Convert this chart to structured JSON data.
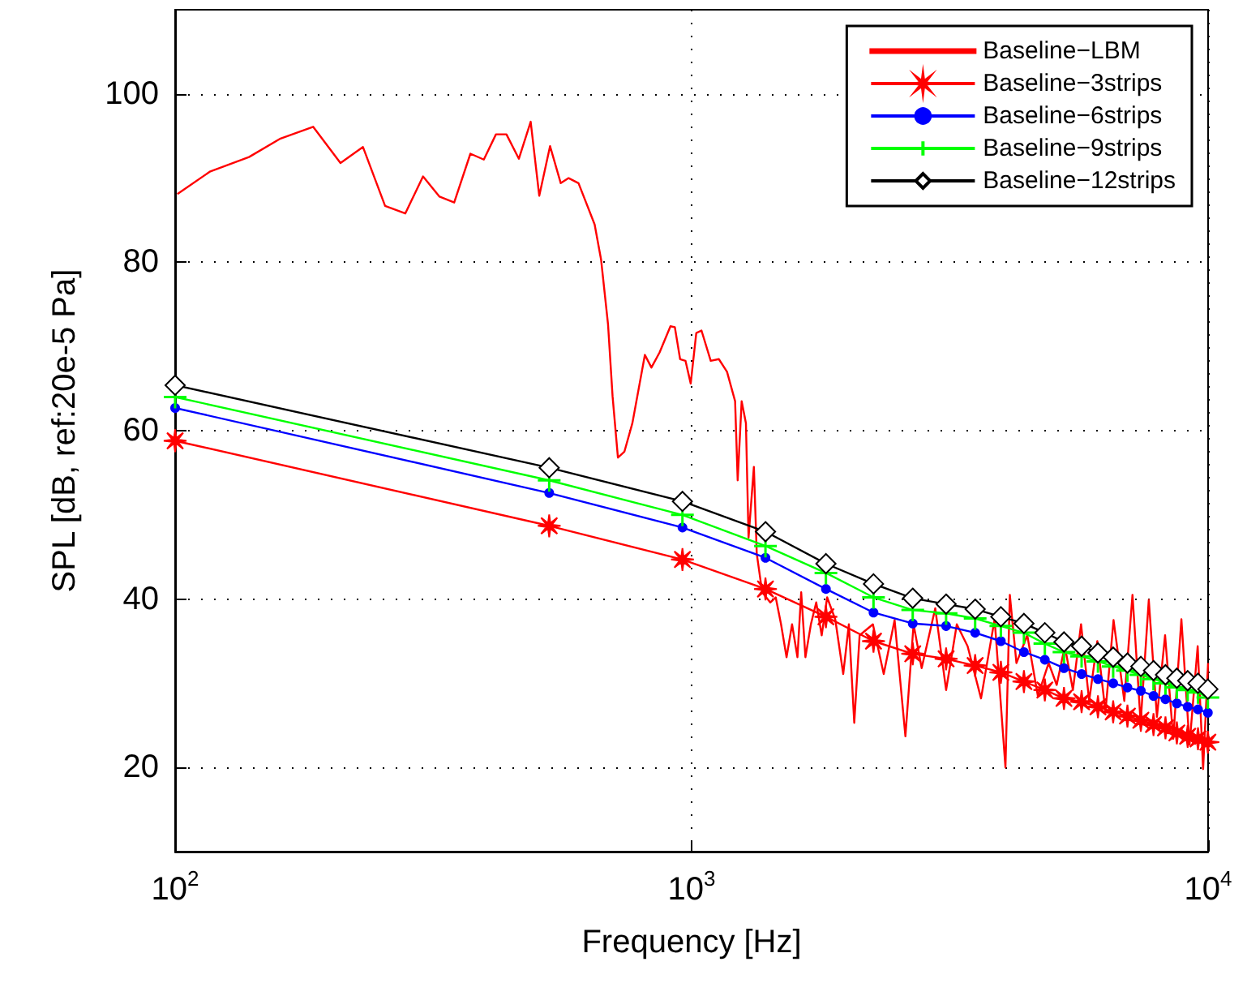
{
  "chart_data": {
    "type": "line",
    "xlabel": "Frequency [Hz]",
    "ylabel": "SPL [dB, ref:20e-5 Pa]",
    "log": "x",
    "xlim": [
      100,
      10000
    ],
    "xticks": [
      {
        "value": 100,
        "label": "10$^{2}$"
      },
      {
        "value": 1000,
        "label": "10$^{3}$"
      },
      {
        "value": 10000,
        "label": "10$^{4}$"
      }
    ],
    "ylim": [
      10,
      110
    ],
    "yticks": [
      20,
      40,
      60,
      80,
      100
    ],
    "grid": true,
    "legend": "top right",
    "line_style": "solid",
    "series": [
      {
        "name": "Baseline−LBM",
        "color": "#ff0000",
        "marker": "none",
        "x": [
          101,
          117,
          139,
          160,
          185,
          209,
          231,
          255,
          279,
          302,
          325,
          347,
          373,
          396,
          418,
          438,
          463,
          488,
          507,
          532,
          558,
          578,
          604,
          649,
          668,
          689,
          703,
          720,
          741,
          768,
          812,
          836,
          867,
          910,
          928,
          950,
          973,
          996,
          1021,
          1045,
          1089,
          1129,
          1171,
          1214,
          1228,
          1250,
          1274,
          1289,
          1320,
          1337,
          1370,
          1420,
          1455,
          1490,
          1527,
          1565,
          1603,
          1630,
          1661,
          1702,
          1743,
          1786,
          1830,
          1897,
          1966,
          2016,
          2065,
          2115,
          2244,
          2355,
          2472,
          2594,
          2690,
          2789,
          2963,
          3110,
          3262,
          3423,
          3634,
          3861,
          4052,
          4132,
          4255,
          4466,
          4682,
          4913,
          5092,
          5280,
          5474,
          5676,
          5885,
          6103,
          6328,
          6561,
          6883,
          7139,
          7403,
          7677,
          7961,
          8256,
          8561,
          8878,
          9206,
          9547,
          9781,
          10000
        ],
        "values": [
          88.1,
          90.8,
          92.5,
          94.7,
          96.1,
          91.8,
          93.7,
          86.7,
          85.8,
          90.2,
          87.8,
          87.1,
          92.9,
          92.2,
          95.2,
          95.2,
          92.3,
          96.7,
          87.9,
          93.8,
          89.4,
          90.0,
          89.4,
          84.5,
          80.3,
          72.6,
          64.1,
          56.8,
          57.5,
          60.9,
          69.0,
          67.5,
          69.3,
          72.4,
          72.3,
          68.5,
          68.3,
          65.6,
          71.6,
          71.9,
          68.3,
          68.5,
          67.0,
          63.5,
          54.1,
          63.5,
          60.9,
          47.3,
          55.7,
          45.4,
          40.8,
          39.6,
          40.2,
          37.0,
          33.1,
          37.0,
          33.1,
          40.8,
          33.1,
          37.0,
          39.6,
          35.7,
          40.2,
          37.6,
          31.1,
          37.0,
          25.3,
          35.7,
          37.0,
          31.1,
          37.5,
          23.7,
          37.0,
          31.8,
          38.9,
          29.2,
          37.0,
          34.4,
          28.2,
          37.6,
          20.0,
          40.5,
          32.4,
          35.7,
          28.5,
          32.4,
          29.8,
          34.4,
          29.2,
          37.0,
          27.9,
          35.0,
          26.6,
          37.5,
          27.9,
          40.5,
          25.3,
          39.9,
          26.0,
          35.7,
          23.4,
          37.6,
          22.7,
          34.4,
          19.8,
          32.4
        ]
      },
      {
        "name": "Baseline−3strips",
        "color": "#ff0000",
        "marker": "star",
        "x": [
          100,
          530,
          960,
          1390,
          1820,
          2250,
          2680,
          3110,
          3540,
          3970,
          4400,
          4830,
          5260,
          5690,
          6120,
          6550,
          6980,
          7410,
          7840,
          8270,
          8700,
          9130,
          9560,
          9990
        ],
        "values": [
          58.8,
          48.7,
          44.7,
          41.2,
          37.9,
          35.0,
          33.5,
          32.9,
          32.1,
          31.3,
          30.2,
          29.2,
          28.2,
          27.8,
          27.2,
          26.6,
          26.1,
          25.6,
          25.1,
          24.7,
          24.1,
          23.7,
          23.4,
          23.0
        ]
      },
      {
        "name": "Baseline−6strips",
        "color": "#0000ff",
        "marker": "circle",
        "x": [
          100,
          530,
          960,
          1390,
          1820,
          2250,
          2680,
          3110,
          3540,
          3970,
          4400,
          4830,
          5260,
          5690,
          6120,
          6550,
          6980,
          7410,
          7840,
          8270,
          8700,
          9130,
          9560,
          9990
        ],
        "values": [
          62.7,
          52.6,
          48.5,
          44.9,
          41.2,
          38.4,
          37.1,
          36.8,
          36.0,
          35.0,
          33.7,
          32.8,
          31.8,
          31.1,
          30.5,
          30.0,
          29.5,
          29.1,
          28.5,
          28.1,
          27.6,
          27.2,
          26.9,
          26.5
        ]
      },
      {
        "name": "Baseline−9strips",
        "color": "#00ff00",
        "marker": "cross",
        "x": [
          100,
          530,
          960,
          1390,
          1820,
          2250,
          2680,
          3110,
          3540,
          3970,
          4400,
          4830,
          5260,
          5690,
          6120,
          6550,
          6980,
          7410,
          7840,
          8270,
          8700,
          9130,
          9560,
          9990
        ],
        "values": [
          64.0,
          54.1,
          50.0,
          46.3,
          43.1,
          40.2,
          38.7,
          38.3,
          37.7,
          36.8,
          36.0,
          34.7,
          33.7,
          33.2,
          32.6,
          32.0,
          31.5,
          31.0,
          30.5,
          30.0,
          29.5,
          29.2,
          28.9,
          28.3
        ]
      },
      {
        "name": "Baseline−12strips",
        "color": "#000000",
        "marker": "diamond",
        "x": [
          100,
          530,
          960,
          1390,
          1820,
          2250,
          2680,
          3110,
          3540,
          3970,
          4400,
          4830,
          5260,
          5690,
          6120,
          6550,
          6980,
          7410,
          7840,
          8270,
          8700,
          9130,
          9560,
          9990
        ],
        "values": [
          65.4,
          55.6,
          51.6,
          48.0,
          44.2,
          41.8,
          40.1,
          39.4,
          38.8,
          37.9,
          37.1,
          36.0,
          34.9,
          34.4,
          33.6,
          33.1,
          32.4,
          32.0,
          31.5,
          31.0,
          30.6,
          30.3,
          30.0,
          29.3
        ]
      }
    ]
  }
}
